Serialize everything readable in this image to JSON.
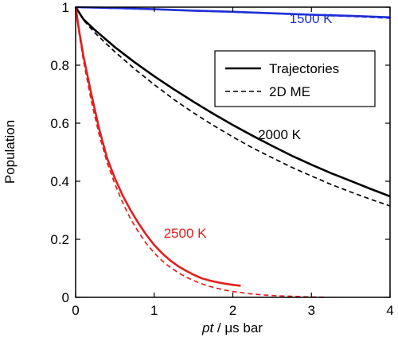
{
  "chart_data": {
    "type": "line",
    "xlabel_italic": "pt",
    "xlabel_rest": " / μs bar",
    "ylabel": "Population",
    "xlim": [
      0,
      4
    ],
    "ylim": [
      0,
      1
    ],
    "xticks": [
      0,
      1,
      2,
      3,
      4
    ],
    "xtick_labels": [
      "0",
      "1",
      "2",
      "3",
      "4"
    ],
    "yticks": [
      0,
      0.2,
      0.4,
      0.6,
      0.8,
      1
    ],
    "ytick_labels": [
      "0",
      "0.2",
      "0.4",
      "0.6",
      "0.8",
      "1"
    ],
    "grid": false,
    "legend": {
      "placement": "top-right",
      "entries": [
        {
          "label": "Trajectories",
          "style": "solid"
        },
        {
          "label": "2D ME",
          "style": "dashed"
        }
      ]
    },
    "series": [
      {
        "annotation": "1500 K",
        "color": "#1f2ed6",
        "style": "solid",
        "x": [
          0,
          0.5,
          1,
          1.5,
          2,
          2.5,
          3,
          3.5,
          4
        ],
        "y": [
          1,
          0.997,
          0.993,
          0.988,
          0.984,
          0.979,
          0.974,
          0.97,
          0.965
        ]
      },
      {
        "annotation": "1500 K",
        "color": "#1f2ed6",
        "style": "dashed",
        "x": [
          0,
          0.5,
          1,
          1.5,
          2,
          2.5,
          3,
          3.5,
          4
        ],
        "y": [
          1,
          0.996,
          0.992,
          0.987,
          0.983,
          0.978,
          0.973,
          0.968,
          0.962
        ]
      },
      {
        "annotation": "2000 K",
        "color": "#000000",
        "style": "solid",
        "x": [
          0,
          0.1,
          0.25,
          0.5,
          0.75,
          1,
          1.25,
          1.5,
          1.75,
          2,
          2.25,
          2.5,
          2.75,
          3,
          3.25,
          3.5,
          3.75,
          4
        ],
        "y": [
          1,
          0.958,
          0.92,
          0.862,
          0.81,
          0.762,
          0.717,
          0.674,
          0.633,
          0.594,
          0.557,
          0.522,
          0.488,
          0.457,
          0.428,
          0.401,
          0.374,
          0.348
        ]
      },
      {
        "annotation": "2000 K",
        "color": "#000000",
        "style": "dashed",
        "x": [
          0,
          0.1,
          0.25,
          0.5,
          0.75,
          1,
          1.25,
          1.5,
          1.75,
          2,
          2.25,
          2.5,
          2.75,
          3,
          3.25,
          3.5,
          3.75,
          4
        ],
        "y": [
          1,
          0.955,
          0.91,
          0.846,
          0.787,
          0.733,
          0.682,
          0.636,
          0.593,
          0.553,
          0.515,
          0.481,
          0.448,
          0.418,
          0.389,
          0.363,
          0.338,
          0.315
        ]
      },
      {
        "annotation": "2500 K",
        "color": "#e0201e",
        "style": "solid",
        "x": [
          0,
          0.05,
          0.1,
          0.2,
          0.3,
          0.4,
          0.5,
          0.6,
          0.7,
          0.8,
          0.9,
          1.0,
          1.1,
          1.2,
          1.3,
          1.4,
          1.5,
          1.6,
          1.7,
          1.8,
          1.9,
          2.0,
          2.1
        ],
        "y": [
          1,
          0.91,
          0.83,
          0.7,
          0.58,
          0.48,
          0.41,
          0.35,
          0.3,
          0.255,
          0.215,
          0.18,
          0.152,
          0.128,
          0.108,
          0.092,
          0.078,
          0.066,
          0.058,
          0.052,
          0.047,
          0.043,
          0.04
        ]
      },
      {
        "annotation": "2500 K",
        "color": "#e0201e",
        "style": "dashed",
        "x": [
          0,
          0.05,
          0.1,
          0.2,
          0.3,
          0.4,
          0.5,
          0.6,
          0.7,
          0.8,
          0.9,
          1.0,
          1.1,
          1.2,
          1.3,
          1.4,
          1.5,
          1.6,
          1.7,
          1.8,
          1.9,
          2.0,
          2.2,
          2.4,
          2.6,
          2.8,
          3.0,
          3.2
        ],
        "y": [
          1,
          0.9,
          0.815,
          0.675,
          0.56,
          0.465,
          0.39,
          0.325,
          0.27,
          0.225,
          0.185,
          0.153,
          0.126,
          0.104,
          0.086,
          0.07,
          0.058,
          0.047,
          0.038,
          0.031,
          0.025,
          0.02,
          0.013,
          0.008,
          0.005,
          0.003,
          0.001,
          0
        ]
      }
    ],
    "annotations": [
      {
        "text": "1500 K",
        "x": 2.72,
        "y": 0.945,
        "color": "#1f2ed6"
      },
      {
        "text": "2000 K",
        "x": 2.32,
        "y": 0.545,
        "color": "#000000"
      },
      {
        "text": "2500 K",
        "x": 1.12,
        "y": 0.205,
        "color": "#e0201e"
      }
    ]
  }
}
